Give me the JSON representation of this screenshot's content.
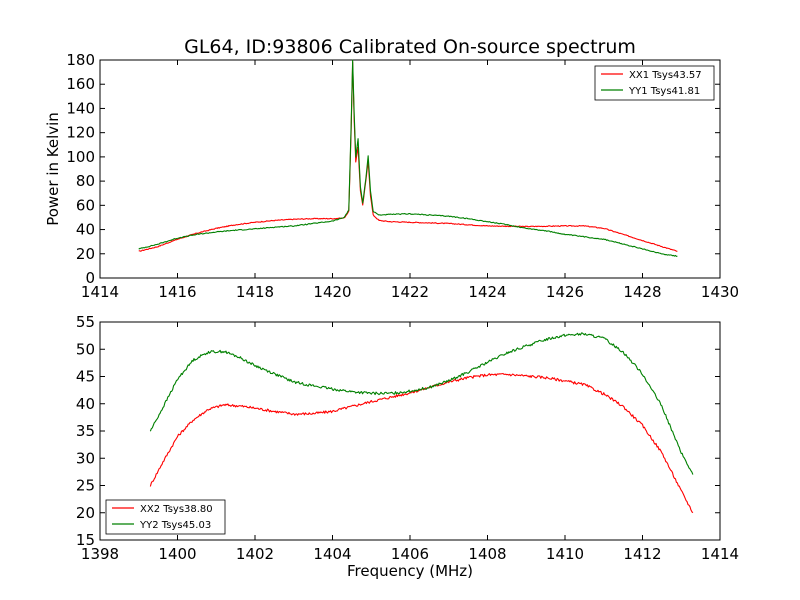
{
  "figure": {
    "title": "GL64, ID:93806 Calibrated On-source spectrum"
  },
  "chart_data": [
    {
      "type": "line",
      "title": "GL64, ID:93806 Calibrated On-source spectrum",
      "xlabel": "",
      "ylabel": "Power in Kelvin",
      "xlim": [
        1414,
        1430
      ],
      "ylim": [
        0,
        180
      ],
      "xticks": [
        1414,
        1416,
        1418,
        1420,
        1422,
        1424,
        1426,
        1428,
        1430
      ],
      "yticks": [
        0,
        20,
        40,
        60,
        80,
        100,
        120,
        140,
        160,
        180
      ],
      "grid": false,
      "legend": "top-right",
      "series": [
        {
          "name": "XX1 Tsys43.57",
          "color": "#ff0000",
          "points": [
            [
              1415.0,
              22
            ],
            [
              1415.5,
              26
            ],
            [
              1416.0,
              32
            ],
            [
              1416.5,
              37
            ],
            [
              1417.0,
              41
            ],
            [
              1417.5,
              44
            ],
            [
              1418.0,
              46
            ],
            [
              1418.5,
              47.5
            ],
            [
              1419.0,
              48.5
            ],
            [
              1419.5,
              49
            ],
            [
              1420.0,
              49
            ],
            [
              1420.3,
              49.5
            ],
            [
              1420.42,
              55
            ],
            [
              1420.48,
              120
            ],
            [
              1420.52,
              178
            ],
            [
              1420.56,
              130
            ],
            [
              1420.6,
              96
            ],
            [
              1420.66,
              108
            ],
            [
              1420.72,
              72
            ],
            [
              1420.78,
              60
            ],
            [
              1420.86,
              80
            ],
            [
              1420.92,
              97
            ],
            [
              1420.98,
              68
            ],
            [
              1421.05,
              52
            ],
            [
              1421.2,
              47.5
            ],
            [
              1421.5,
              46.5
            ],
            [
              1422.0,
              46
            ],
            [
              1423.0,
              45
            ],
            [
              1424.0,
              43
            ],
            [
              1425.0,
              42.5
            ],
            [
              1426.0,
              43
            ],
            [
              1426.5,
              43
            ],
            [
              1427.0,
              41
            ],
            [
              1427.5,
              36
            ],
            [
              1428.0,
              31
            ],
            [
              1428.5,
              26
            ],
            [
              1428.9,
              22
            ]
          ]
        },
        {
          "name": "YY1 Tsys41.81",
          "color": "#008000",
          "points": [
            [
              1415.0,
              24
            ],
            [
              1415.5,
              28
            ],
            [
              1416.0,
              33
            ],
            [
              1416.5,
              36
            ],
            [
              1417.0,
              38
            ],
            [
              1417.5,
              39.5
            ],
            [
              1418.0,
              40.5
            ],
            [
              1418.5,
              42
            ],
            [
              1419.0,
              43
            ],
            [
              1419.5,
              45
            ],
            [
              1420.0,
              47
            ],
            [
              1420.3,
              50
            ],
            [
              1420.42,
              56
            ],
            [
              1420.48,
              125
            ],
            [
              1420.52,
              180
            ],
            [
              1420.56,
              135
            ],
            [
              1420.6,
              100
            ],
            [
              1420.66,
              115
            ],
            [
              1420.72,
              75
            ],
            [
              1420.78,
              62
            ],
            [
              1420.86,
              82
            ],
            [
              1420.92,
              101
            ],
            [
              1420.98,
              72
            ],
            [
              1421.05,
              55
            ],
            [
              1421.2,
              52
            ],
            [
              1421.5,
              52.5
            ],
            [
              1422.0,
              53
            ],
            [
              1422.5,
              52
            ],
            [
              1423.0,
              51
            ],
            [
              1423.5,
              49
            ],
            [
              1424.0,
              46.5
            ],
            [
              1424.5,
              44
            ],
            [
              1425.0,
              41
            ],
            [
              1425.5,
              39
            ],
            [
              1426.0,
              36
            ],
            [
              1426.5,
              34
            ],
            [
              1427.0,
              32
            ],
            [
              1427.5,
              28
            ],
            [
              1428.0,
              24
            ],
            [
              1428.5,
              20
            ],
            [
              1428.9,
              18
            ]
          ]
        }
      ]
    },
    {
      "type": "line",
      "title": "",
      "xlabel": "Frequency (MHz)",
      "ylabel": "",
      "xlim": [
        1398,
        1414
      ],
      "ylim": [
        15,
        55
      ],
      "xticks": [
        1398,
        1400,
        1402,
        1404,
        1406,
        1408,
        1410,
        1412,
        1414
      ],
      "yticks": [
        15,
        20,
        25,
        30,
        35,
        40,
        45,
        50,
        55
      ],
      "grid": false,
      "legend": "bottom-left",
      "series": [
        {
          "name": "XX2 Tsys38.80",
          "color": "#ff0000",
          "points": [
            [
              1399.3,
              25
            ],
            [
              1399.6,
              29
            ],
            [
              1400.0,
              34
            ],
            [
              1400.4,
              37
            ],
            [
              1400.8,
              39
            ],
            [
              1401.2,
              39.8
            ],
            [
              1401.6,
              39.6
            ],
            [
              1402.0,
              39.2
            ],
            [
              1402.5,
              38.6
            ],
            [
              1403.0,
              38.1
            ],
            [
              1403.5,
              38.2
            ],
            [
              1404.0,
              38.6
            ],
            [
              1404.5,
              39.5
            ],
            [
              1405.0,
              40.4
            ],
            [
              1405.5,
              41.2
            ],
            [
              1406.0,
              42
            ],
            [
              1406.5,
              43
            ],
            [
              1407.0,
              44
            ],
            [
              1407.5,
              44.8
            ],
            [
              1408.0,
              45.3
            ],
            [
              1408.5,
              45.4
            ],
            [
              1409.0,
              45.1
            ],
            [
              1409.5,
              44.8
            ],
            [
              1410.0,
              44.2
            ],
            [
              1410.5,
              43.5
            ],
            [
              1411.0,
              41.8
            ],
            [
              1411.5,
              39.5
            ],
            [
              1412.0,
              36
            ],
            [
              1412.5,
              31
            ],
            [
              1413.0,
              24
            ],
            [
              1413.3,
              20
            ]
          ]
        },
        {
          "name": "YY2 Tsys45.03",
          "color": "#008000",
          "points": [
            [
              1399.3,
              35
            ],
            [
              1399.6,
              39
            ],
            [
              1400.0,
              44.5
            ],
            [
              1400.4,
              48
            ],
            [
              1400.8,
              49.5
            ],
            [
              1401.2,
              49.6
            ],
            [
              1401.6,
              48.5
            ],
            [
              1402.0,
              47
            ],
            [
              1402.5,
              45.5
            ],
            [
              1403.0,
              44
            ],
            [
              1403.5,
              43.3
            ],
            [
              1404.0,
              42.7
            ],
            [
              1404.5,
              42.2
            ],
            [
              1405.0,
              41.9
            ],
            [
              1405.5,
              41.9
            ],
            [
              1406.0,
              42.3
            ],
            [
              1406.5,
              43
            ],
            [
              1407.0,
              44.2
            ],
            [
              1407.5,
              45.8
            ],
            [
              1408.0,
              47.6
            ],
            [
              1408.5,
              49.3
            ],
            [
              1409.0,
              50.6
            ],
            [
              1409.5,
              51.8
            ],
            [
              1410.0,
              52.6
            ],
            [
              1410.5,
              52.8
            ],
            [
              1411.0,
              52
            ],
            [
              1411.5,
              49.5
            ],
            [
              1412.0,
              45.5
            ],
            [
              1412.5,
              39.5
            ],
            [
              1413.0,
              31
            ],
            [
              1413.3,
              27
            ]
          ]
        }
      ]
    }
  ]
}
